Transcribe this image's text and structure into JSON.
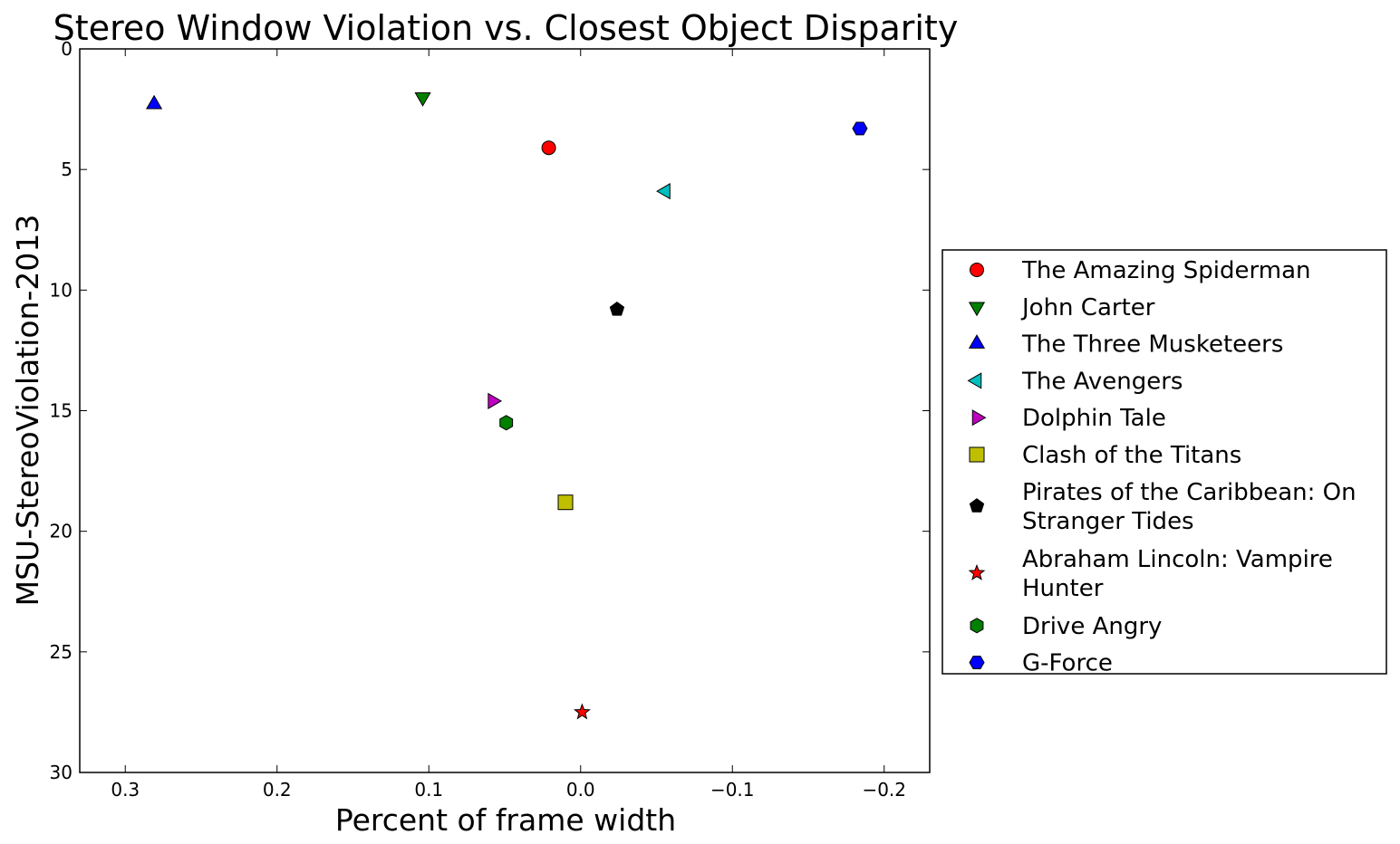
{
  "chart_data": {
    "type": "scatter",
    "title": "Stereo Window Violation vs. Closest Object Disparity",
    "xlabel": "Percent of frame width",
    "ylabel": "MSU-StereoViolation-2013",
    "xlim": [
      0.33,
      -0.23
    ],
    "ylim": [
      30,
      0
    ],
    "x_inverted": true,
    "y_inverted": true,
    "xticks": [
      0.3,
      0.2,
      0.1,
      0.0,
      -0.1,
      -0.2
    ],
    "xtick_labels": [
      "0.3",
      "0.2",
      "0.1",
      "0.0",
      "−0.1",
      "−0.2"
    ],
    "yticks": [
      0,
      5,
      10,
      15,
      20,
      25,
      30
    ],
    "ytick_labels": [
      "0",
      "5",
      "10",
      "15",
      "20",
      "25",
      "30"
    ],
    "grid": false,
    "legend_position": "right, outside plot",
    "series": [
      {
        "name": "The Amazing Spiderman",
        "x": 0.021,
        "y": 4.1,
        "marker": "circle",
        "color": "#ff0000"
      },
      {
        "name": "John Carter",
        "x": 0.104,
        "y": 2.0,
        "marker": "triangle-down",
        "color": "#008000"
      },
      {
        "name": "The Three Musketeers",
        "x": 0.281,
        "y": 2.3,
        "marker": "triangle-up",
        "color": "#0000ff"
      },
      {
        "name": "The Avengers",
        "x": -0.056,
        "y": 5.9,
        "marker": "triangle-left",
        "color": "#00bfbf"
      },
      {
        "name": "Dolphin Tale",
        "x": 0.058,
        "y": 14.6,
        "marker": "triangle-right",
        "color": "#bf00bf"
      },
      {
        "name": "Clash of the Titans",
        "x": 0.01,
        "y": 18.8,
        "marker": "square",
        "color": "#bfbf00"
      },
      {
        "name": "Pirates of the Caribbean: On Stranger Tides",
        "legend_lines": [
          "Pirates of the Caribbean: On",
          "Stranger Tides"
        ],
        "x": -0.024,
        "y": 10.8,
        "marker": "pentagon",
        "color": "#000000"
      },
      {
        "name": "Abraham Lincoln: Vampire Hunter",
        "legend_lines": [
          "Abraham Lincoln: Vampire",
          "Hunter"
        ],
        "x": -0.001,
        "y": 27.5,
        "marker": "star",
        "color": "#ff0000"
      },
      {
        "name": "Drive Angry",
        "x": 0.049,
        "y": 15.5,
        "marker": "hexagon",
        "color": "#008000"
      },
      {
        "name": "G-Force",
        "x": -0.184,
        "y": 3.3,
        "marker": "hexagon-flat",
        "color": "#0000ff"
      }
    ]
  }
}
